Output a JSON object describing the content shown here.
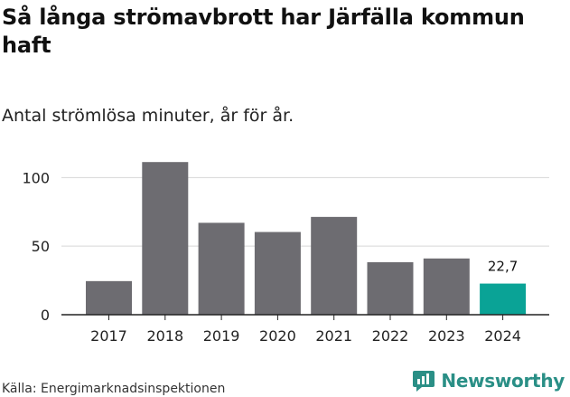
{
  "title": "Så långa strömavbrott har Järfälla kommun haft",
  "subtitle": "Antal strömlösa minuter, år för år.",
  "source": "Källa: Energimarknadsinspektionen",
  "brand": {
    "name": "Newsworthy",
    "icon": "newsworthy-logo-icon",
    "color": "#2a8f86"
  },
  "chart_data": {
    "type": "bar",
    "categories": [
      "2017",
      "2018",
      "2019",
      "2020",
      "2021",
      "2022",
      "2023",
      "2024"
    ],
    "values": [
      24.5,
      111.3,
      67.0,
      60.3,
      71.3,
      38.3,
      41.0,
      22.7
    ],
    "data_labels": [
      {
        "category": "2024",
        "label": "22,7"
      }
    ],
    "highlight": "2024",
    "colors": {
      "bar": "#6d6c71",
      "highlight": "#0aa396",
      "grid": "#d6d6d6",
      "axis": "#222222"
    },
    "yticks": [
      0,
      50,
      100
    ],
    "ylim": [
      0,
      120
    ],
    "xlabel": "",
    "ylabel": "",
    "grid": true,
    "legend": "none"
  }
}
